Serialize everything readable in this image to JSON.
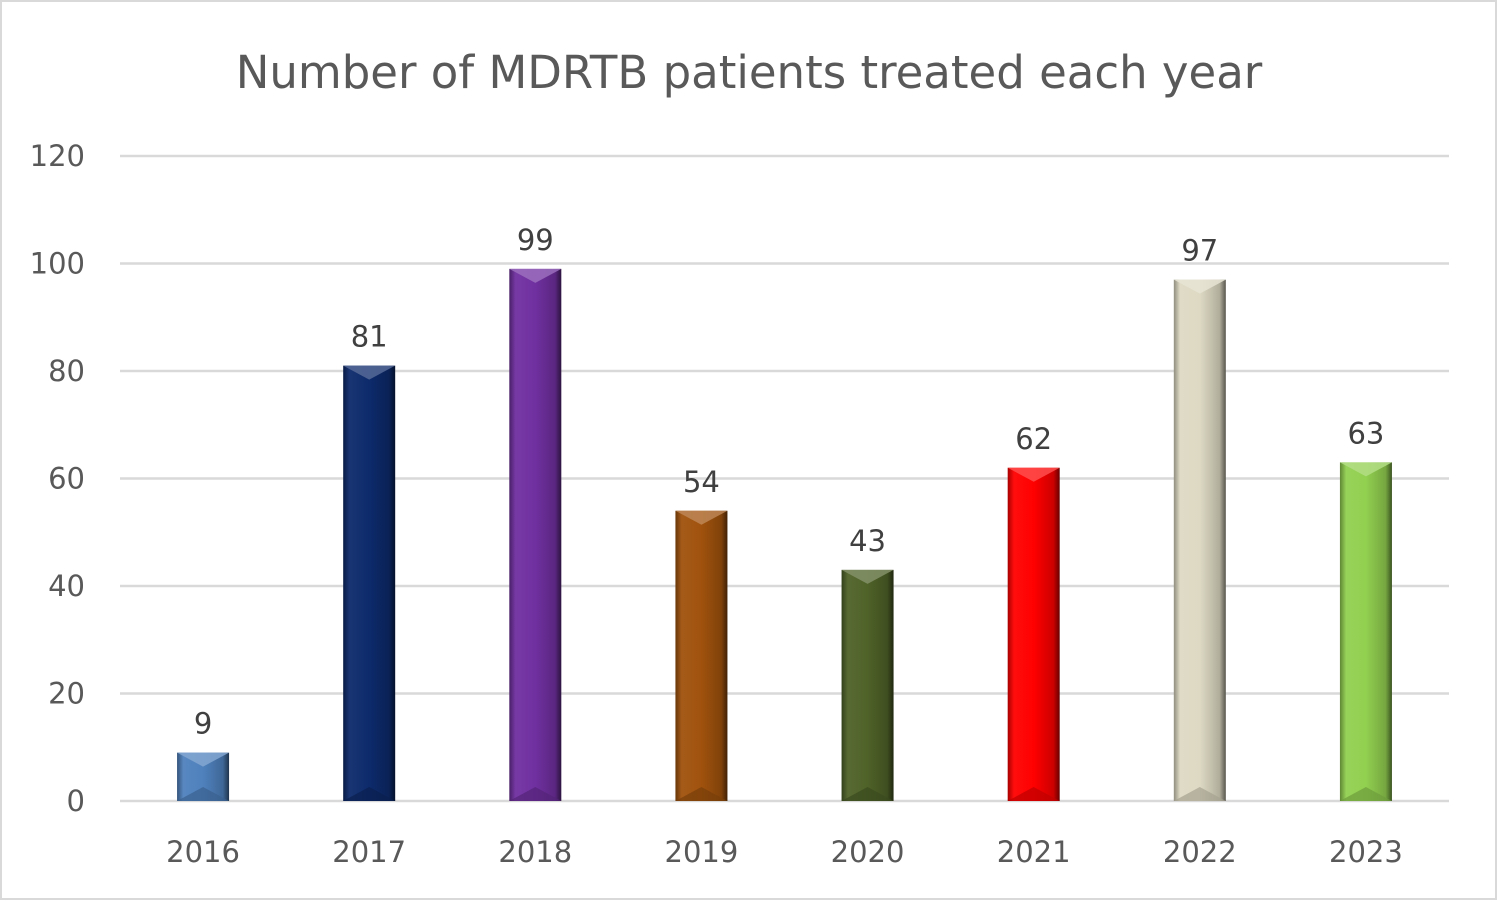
{
  "chart_data": {
    "type": "bar",
    "title": "Number of MDRTB patients treated each year",
    "xlabel": "",
    "ylabel": "",
    "categories": [
      "2016",
      "2017",
      "2018",
      "2019",
      "2020",
      "2021",
      "2022",
      "2023"
    ],
    "values": [
      9,
      81,
      99,
      54,
      43,
      62,
      97,
      63
    ],
    "bar_colors": [
      "#4f81bd",
      "#0d2a6b",
      "#7030a0",
      "#a0520d",
      "#4f6228",
      "#ff0000",
      "#ddd9c3",
      "#92d050"
    ],
    "ylim": [
      0,
      120
    ],
    "yticks": [
      0,
      20,
      40,
      60,
      80,
      100,
      120
    ],
    "grid": true,
    "legend": "none",
    "data_labels": true
  }
}
